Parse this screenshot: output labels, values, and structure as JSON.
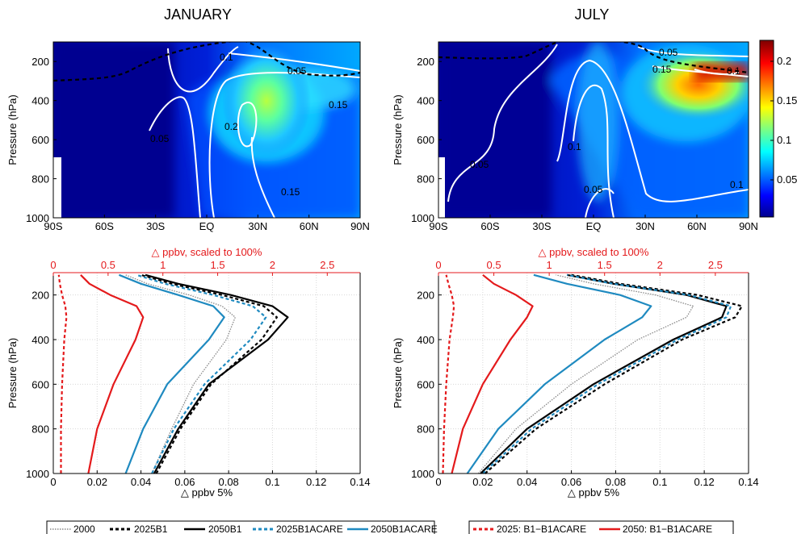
{
  "titles": {
    "left": "JANUARY",
    "right": "JULY"
  },
  "top_panels": {
    "xticks": [
      "90S",
      "60S",
      "30S",
      "EQ",
      "30N",
      "60N",
      "90N"
    ],
    "yticks": [
      "200",
      "400",
      "600",
      "800",
      "1000"
    ],
    "ylabel": "Pressure (hPa)",
    "colorbar_ticks": [
      "0.05",
      "0.1",
      "0.15",
      "0.2"
    ],
    "jan_contour_labels": [
      "0.1",
      "0.05",
      "0.15",
      "0.2",
      "0.05",
      "0.15"
    ],
    "jul_contour_labels": [
      "0.05",
      "0.15",
      "0.1",
      "0.1",
      "0.05",
      "0.05",
      "0.1"
    ]
  },
  "bottom_panels": {
    "top_xlabel": "△ ppbv, scaled to 100%",
    "top_xticks": [
      "0",
      "0.5",
      "1",
      "1.5",
      "2",
      "2.5"
    ],
    "bottom_xlabel": "△ ppbv  5%",
    "bottom_xticks": [
      "0",
      "0.02",
      "0.04",
      "0.06",
      "0.08",
      "0.1",
      "0.12",
      "0.14"
    ],
    "yticks": [
      "200",
      "400",
      "600",
      "800",
      "1000"
    ],
    "ylabel": "Pressure (hPa)"
  },
  "legend": {
    "left": [
      "2000",
      "2025B1",
      "2050B1",
      "2025B1ACARE",
      "2050B1ACARE"
    ],
    "right": [
      "2025: B1−B1ACARE",
      "2050: B1−B1ACARE"
    ]
  },
  "colors": {
    "blue": "#1f8ac0",
    "red": "#e41a1c",
    "black": "#000000",
    "gray": "#888888"
  },
  "chart_data": [
    {
      "type": "heatmap",
      "title": "JANUARY",
      "ylabel": "Pressure (hPa)",
      "xlim": [
        -90,
        90
      ],
      "ylim": [
        1000,
        100
      ],
      "colorbar_range": [
        0,
        0.23
      ]
    },
    {
      "type": "heatmap",
      "title": "JULY",
      "ylabel": "Pressure (hPa)",
      "xlim": [
        -90,
        90
      ],
      "ylim": [
        1000,
        100
      ],
      "colorbar_range": [
        0,
        0.23
      ]
    },
    {
      "type": "line",
      "panel": "January profiles",
      "xlabel": "△ ppbv  5%",
      "ylabel": "Pressure (hPa)",
      "xlim": [
        0,
        0.14
      ],
      "ylim": [
        1000,
        100
      ],
      "series": [
        {
          "name": "2000",
          "style": "dotted",
          "p": [
            1000,
            800,
            600,
            400,
            300,
            250,
            200,
            150,
            110
          ],
          "x": [
            0.045,
            0.054,
            0.064,
            0.079,
            0.083,
            0.077,
            0.062,
            0.043,
            0.033
          ]
        },
        {
          "name": "2025B1",
          "style": "dashed",
          "p": [
            1000,
            800,
            600,
            400,
            300,
            250,
            200,
            150,
            110
          ],
          "x": [
            0.047,
            0.058,
            0.072,
            0.095,
            0.102,
            0.096,
            0.077,
            0.054,
            0.04
          ]
        },
        {
          "name": "2050B1",
          "style": "solid",
          "p": [
            1000,
            800,
            600,
            400,
            300,
            250,
            200,
            150,
            110
          ],
          "x": [
            0.046,
            0.057,
            0.071,
            0.098,
            0.107,
            0.1,
            0.081,
            0.057,
            0.042
          ]
        },
        {
          "name": "2025B1ACARE",
          "style": "dashed",
          "p": [
            1000,
            800,
            600,
            400,
            300,
            250,
            200,
            150,
            110
          ],
          "x": [
            0.045,
            0.055,
            0.069,
            0.09,
            0.097,
            0.091,
            0.073,
            0.051,
            0.038
          ]
        },
        {
          "name": "2050B1ACARE",
          "style": "solid",
          "p": [
            1000,
            800,
            600,
            400,
            300,
            250,
            200,
            150,
            110
          ],
          "x": [
            0.033,
            0.041,
            0.052,
            0.071,
            0.078,
            0.073,
            0.057,
            0.04,
            0.03
          ]
        }
      ]
    },
    {
      "type": "line",
      "panel": "January differences",
      "xlabel": "△ ppbv, scaled to 100%",
      "xlim": [
        0,
        2.8
      ],
      "ylim": [
        1000,
        100
      ],
      "series": [
        {
          "name": "2025: B1−B1ACARE",
          "style": "dashed",
          "p": [
            1000,
            800,
            600,
            400,
            300,
            250,
            200,
            150,
            110
          ],
          "x": [
            0.07,
            0.07,
            0.08,
            0.1,
            0.12,
            0.11,
            0.08,
            0.06,
            0.05
          ]
        },
        {
          "name": "2050: B1−B1ACARE",
          "style": "solid",
          "p": [
            1000,
            800,
            600,
            400,
            300,
            250,
            200,
            150,
            110
          ],
          "x": [
            0.32,
            0.4,
            0.55,
            0.75,
            0.82,
            0.76,
            0.52,
            0.33,
            0.25
          ]
        }
      ]
    },
    {
      "type": "line",
      "panel": "July profiles",
      "xlabel": "△ ppbv  5%",
      "ylabel": "Pressure (hPa)",
      "xlim": [
        0,
        0.14
      ],
      "ylim": [
        1000,
        100
      ],
      "series": [
        {
          "name": "2000",
          "style": "dotted",
          "p": [
            1000,
            800,
            600,
            400,
            300,
            250,
            200,
            150,
            110
          ],
          "x": [
            0.018,
            0.035,
            0.06,
            0.09,
            0.112,
            0.115,
            0.098,
            0.07,
            0.053
          ]
        },
        {
          "name": "2025B1",
          "style": "dashed",
          "p": [
            1000,
            800,
            600,
            400,
            300,
            250,
            200,
            150,
            110
          ],
          "x": [
            0.021,
            0.044,
            0.075,
            0.11,
            0.134,
            0.137,
            0.117,
            0.082,
            0.06
          ]
        },
        {
          "name": "2050B1",
          "style": "solid",
          "p": [
            1000,
            800,
            600,
            400,
            300,
            250,
            200,
            150,
            110
          ],
          "x": [
            0.019,
            0.04,
            0.07,
            0.106,
            0.128,
            0.13,
            0.112,
            0.079,
            0.058
          ]
        },
        {
          "name": "2025B1ACARE",
          "style": "dashed",
          "p": [
            1000,
            800,
            600,
            400,
            300,
            250,
            200,
            150,
            110
          ],
          "x": [
            0.02,
            0.042,
            0.072,
            0.108,
            0.13,
            0.132,
            0.113,
            0.079,
            0.058
          ]
        },
        {
          "name": "2050B1ACARE",
          "style": "solid",
          "p": [
            1000,
            800,
            600,
            400,
            300,
            250,
            200,
            150,
            110
          ],
          "x": [
            0.013,
            0.027,
            0.048,
            0.075,
            0.092,
            0.096,
            0.082,
            0.058,
            0.043
          ]
        }
      ]
    },
    {
      "type": "line",
      "panel": "July differences",
      "xlabel": "△ ppbv, scaled to 100%",
      "xlim": [
        0,
        2.8
      ],
      "ylim": [
        1000,
        100
      ],
      "series": [
        {
          "name": "2025: B1−B1ACARE",
          "style": "dashed",
          "p": [
            1000,
            800,
            600,
            400,
            300,
            250,
            200,
            150,
            110
          ],
          "x": [
            0.04,
            0.05,
            0.07,
            0.1,
            0.13,
            0.14,
            0.12,
            0.09,
            0.07
          ]
        },
        {
          "name": "2050: B1−B1ACARE",
          "style": "solid",
          "p": [
            1000,
            800,
            600,
            400,
            300,
            250,
            200,
            150,
            110
          ],
          "x": [
            0.12,
            0.22,
            0.4,
            0.65,
            0.8,
            0.85,
            0.7,
            0.5,
            0.4
          ]
        }
      ]
    }
  ]
}
